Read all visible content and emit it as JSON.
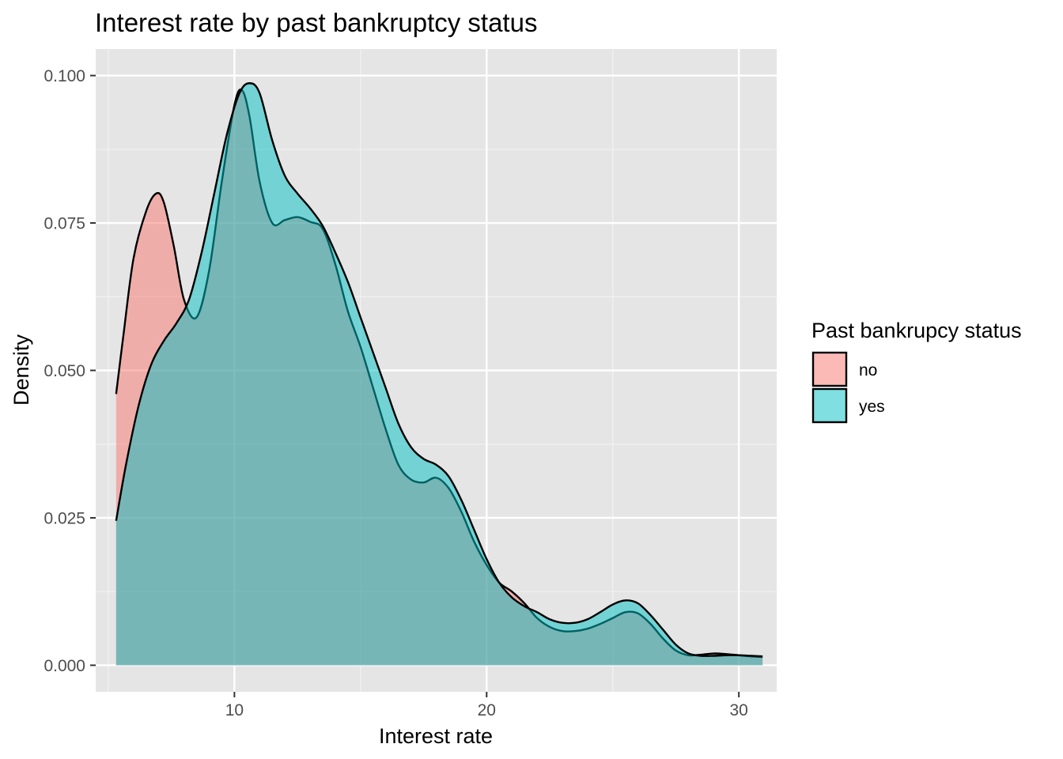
{
  "chart_data": {
    "type": "area",
    "subtype": "density",
    "title": "Interest rate by past bankruptcy status",
    "xlabel": "Interest rate",
    "ylabel": "Density",
    "xlim": [
      4.5,
      31.5
    ],
    "ylim": [
      -0.0045,
      0.1045
    ],
    "x_ticks": [
      10,
      20,
      30
    ],
    "x_tick_labels": [
      "10",
      "20",
      "30"
    ],
    "y_ticks": [
      0.0,
      0.025,
      0.05,
      0.075,
      0.1
    ],
    "y_tick_labels": [
      "0.000",
      "0.025",
      "0.050",
      "0.075",
      "0.100"
    ],
    "grid": true,
    "panel_background": "#e5e5e5",
    "legend": {
      "title": "Past bankrupcy status",
      "position": "right"
    },
    "series": [
      {
        "name": "no",
        "fill": "#F8766D",
        "points": [
          [
            5.31,
            0.046
          ],
          [
            5.6,
            0.056
          ],
          [
            6.0,
            0.069
          ],
          [
            6.5,
            0.077
          ],
          [
            6.9,
            0.08
          ],
          [
            7.2,
            0.0785
          ],
          [
            7.6,
            0.071
          ],
          [
            8.0,
            0.062
          ],
          [
            8.5,
            0.059
          ],
          [
            9.0,
            0.067
          ],
          [
            9.5,
            0.082
          ],
          [
            10.0,
            0.095
          ],
          [
            10.3,
            0.0975
          ],
          [
            10.6,
            0.093
          ],
          [
            11.0,
            0.082
          ],
          [
            11.5,
            0.075
          ],
          [
            12.0,
            0.0755
          ],
          [
            12.5,
            0.076
          ],
          [
            13.0,
            0.0752
          ],
          [
            13.5,
            0.074
          ],
          [
            14.0,
            0.068
          ],
          [
            14.5,
            0.06
          ],
          [
            15.0,
            0.054
          ],
          [
            15.5,
            0.047
          ],
          [
            16.0,
            0.04
          ],
          [
            16.5,
            0.034
          ],
          [
            17.0,
            0.0315
          ],
          [
            17.5,
            0.031
          ],
          [
            18.0,
            0.0318
          ],
          [
            18.5,
            0.03
          ],
          [
            19.0,
            0.026
          ],
          [
            19.5,
            0.021
          ],
          [
            20.0,
            0.017
          ],
          [
            20.5,
            0.014
          ],
          [
            21.0,
            0.0125
          ],
          [
            21.5,
            0.0105
          ],
          [
            22.0,
            0.008
          ],
          [
            22.5,
            0.0065
          ],
          [
            23.0,
            0.0058
          ],
          [
            23.5,
            0.0058
          ],
          [
            24.0,
            0.0062
          ],
          [
            24.5,
            0.007
          ],
          [
            25.0,
            0.008
          ],
          [
            25.5,
            0.009
          ],
          [
            26.0,
            0.0088
          ],
          [
            26.5,
            0.007
          ],
          [
            27.0,
            0.0045
          ],
          [
            27.5,
            0.0025
          ],
          [
            28.0,
            0.0017
          ],
          [
            28.5,
            0.0018
          ],
          [
            29.0,
            0.002
          ],
          [
            29.5,
            0.0019
          ],
          [
            30.0,
            0.0017
          ],
          [
            30.5,
            0.0015
          ],
          [
            30.94,
            0.0014
          ]
        ]
      },
      {
        "name": "yes",
        "fill": "#00BFC4",
        "points": [
          [
            5.31,
            0.0245
          ],
          [
            5.7,
            0.034
          ],
          [
            6.2,
            0.044
          ],
          [
            6.7,
            0.051
          ],
          [
            7.2,
            0.055
          ],
          [
            7.7,
            0.058
          ],
          [
            8.2,
            0.062
          ],
          [
            8.7,
            0.07
          ],
          [
            9.2,
            0.08
          ],
          [
            9.7,
            0.09
          ],
          [
            10.2,
            0.097
          ],
          [
            10.6,
            0.0987
          ],
          [
            11.0,
            0.097
          ],
          [
            11.5,
            0.089
          ],
          [
            12.0,
            0.083
          ],
          [
            12.5,
            0.08
          ],
          [
            13.0,
            0.0775
          ],
          [
            13.5,
            0.0745
          ],
          [
            14.0,
            0.07
          ],
          [
            14.5,
            0.065
          ],
          [
            15.0,
            0.059
          ],
          [
            15.5,
            0.053
          ],
          [
            16.0,
            0.047
          ],
          [
            16.5,
            0.041
          ],
          [
            17.0,
            0.037
          ],
          [
            17.5,
            0.035
          ],
          [
            18.0,
            0.034
          ],
          [
            18.5,
            0.032
          ],
          [
            19.0,
            0.028
          ],
          [
            19.5,
            0.023
          ],
          [
            20.0,
            0.018
          ],
          [
            20.5,
            0.014
          ],
          [
            21.0,
            0.0115
          ],
          [
            21.5,
            0.01
          ],
          [
            22.0,
            0.009
          ],
          [
            22.5,
            0.0078
          ],
          [
            23.0,
            0.0072
          ],
          [
            23.5,
            0.0072
          ],
          [
            24.0,
            0.0078
          ],
          [
            24.5,
            0.009
          ],
          [
            25.0,
            0.0103
          ],
          [
            25.5,
            0.011
          ],
          [
            26.0,
            0.0105
          ],
          [
            26.5,
            0.0085
          ],
          [
            27.0,
            0.006
          ],
          [
            27.5,
            0.0035
          ],
          [
            28.0,
            0.002
          ],
          [
            28.5,
            0.0016
          ],
          [
            29.0,
            0.0016
          ],
          [
            29.5,
            0.0017
          ],
          [
            30.0,
            0.0017
          ],
          [
            30.5,
            0.0016
          ],
          [
            30.94,
            0.0015
          ]
        ]
      }
    ]
  }
}
